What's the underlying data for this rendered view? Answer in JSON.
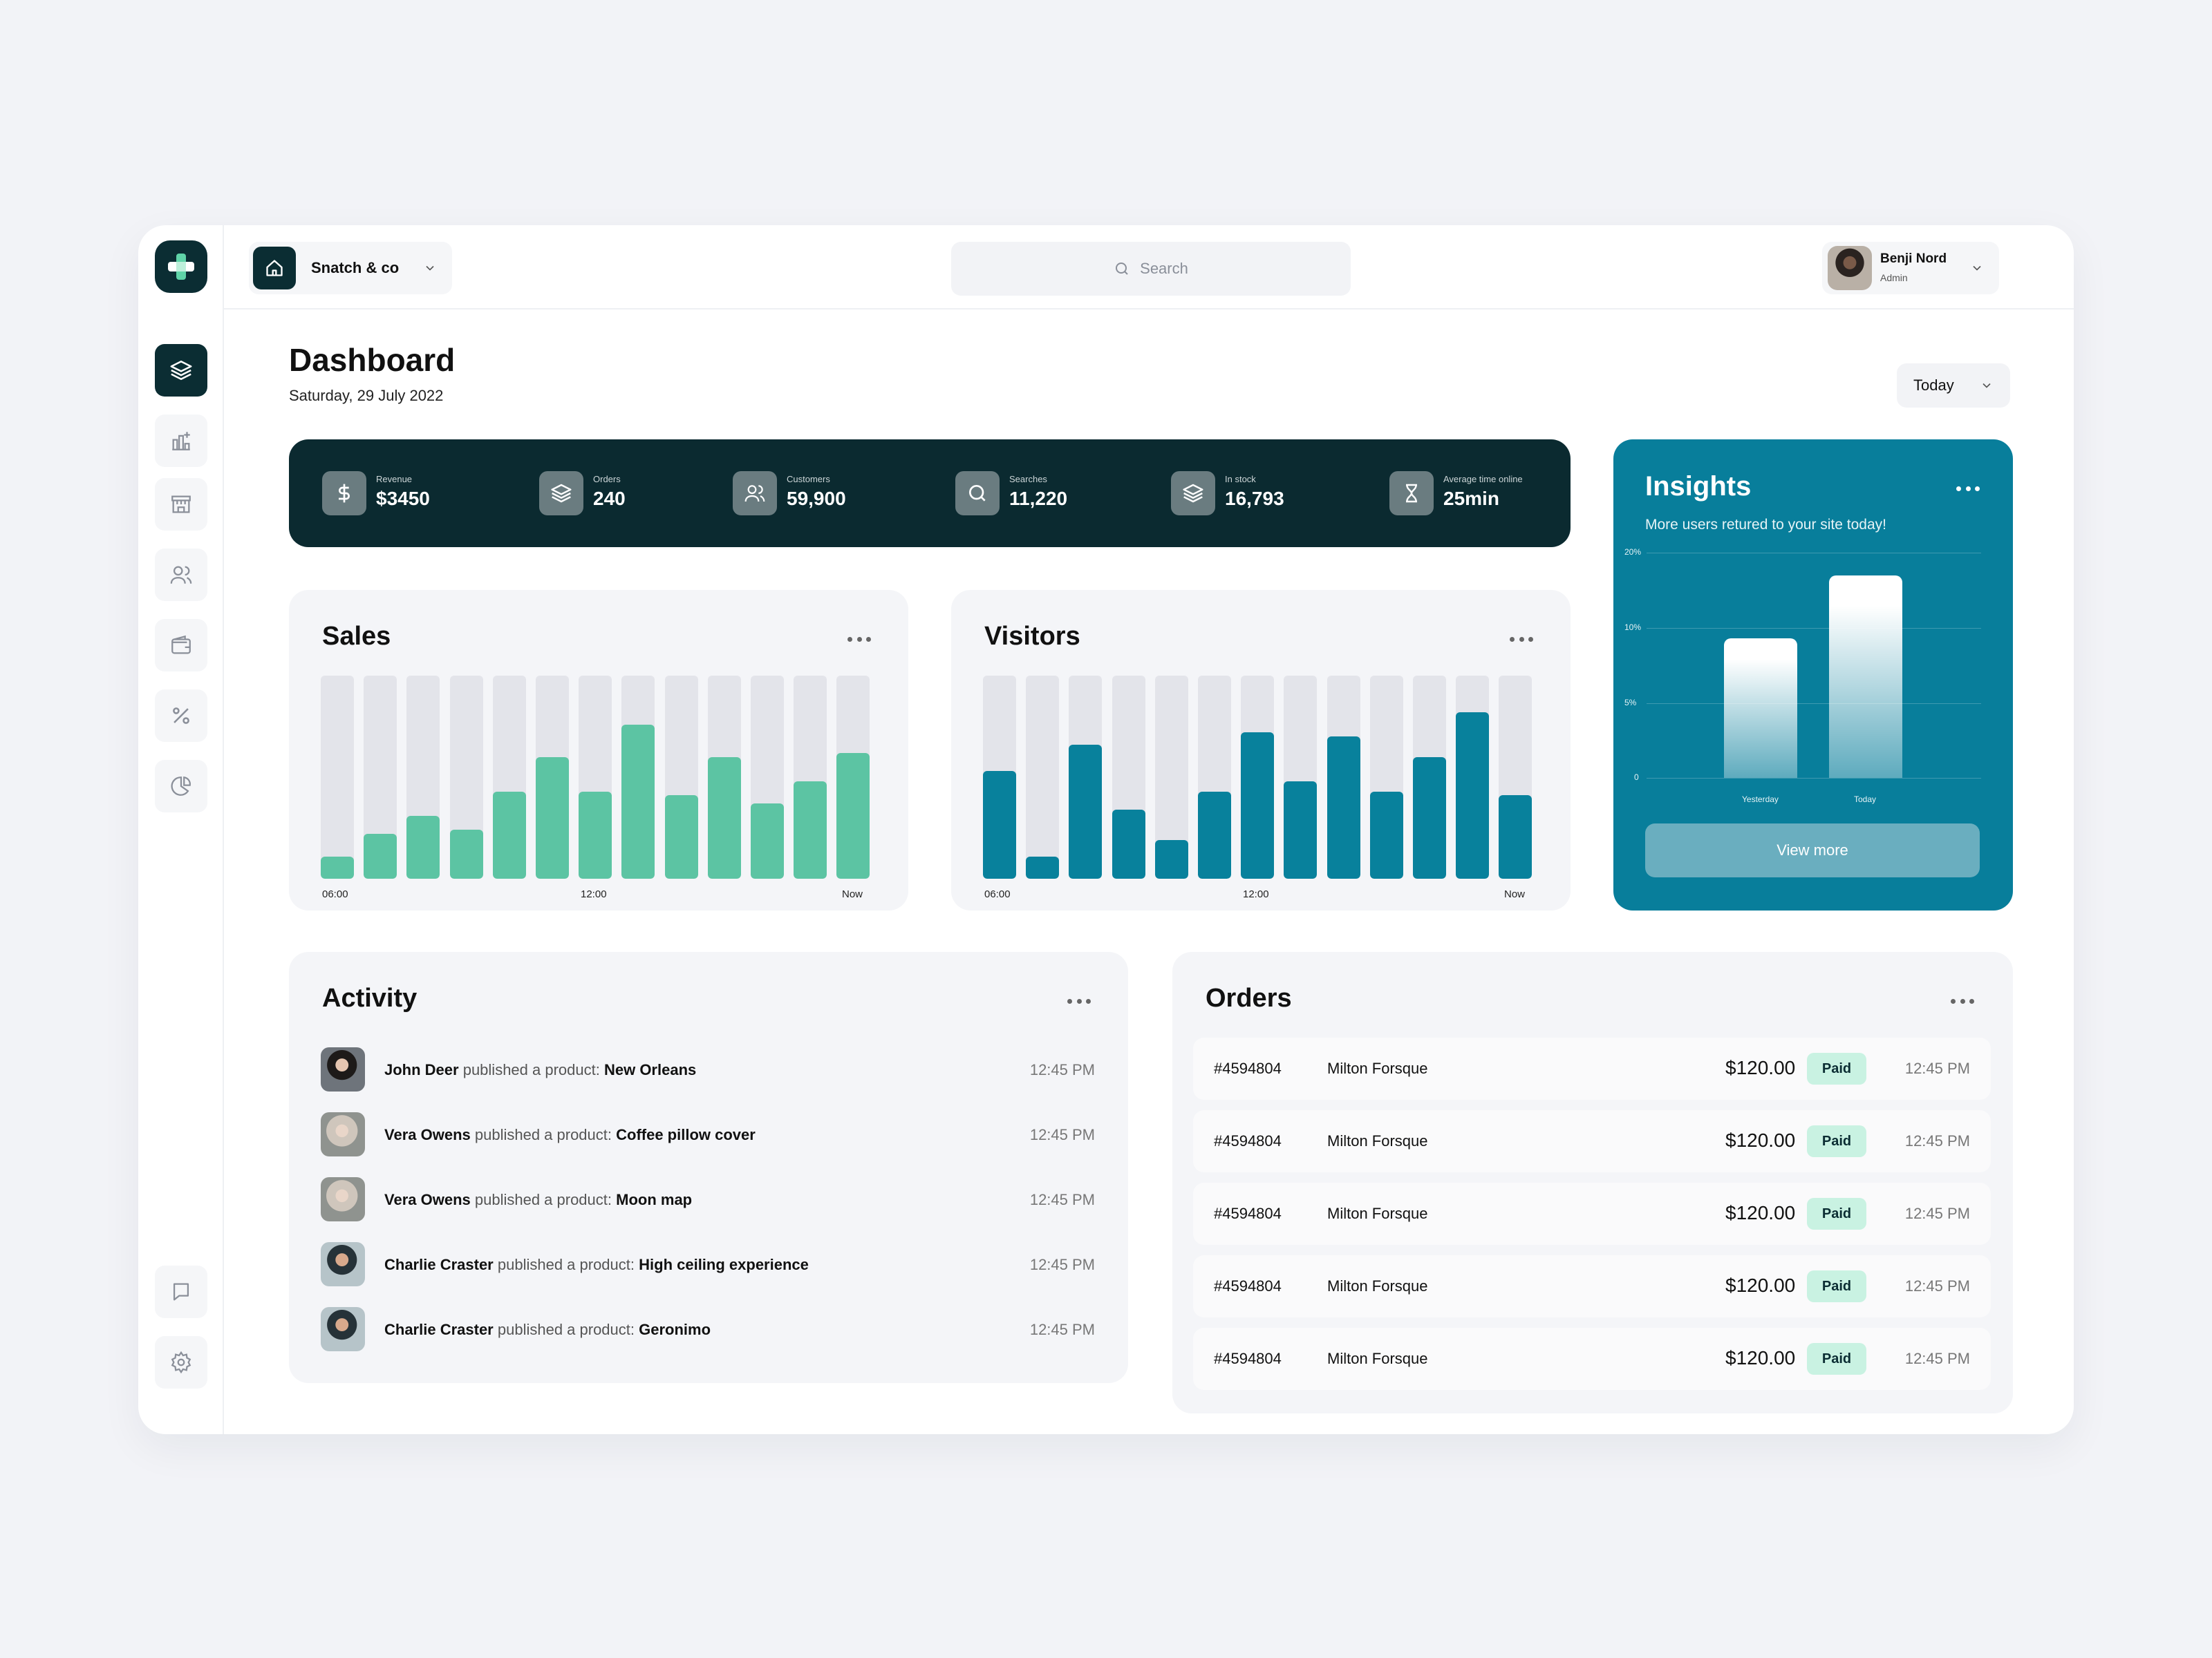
{
  "header": {
    "workspace_name": "Snatch & co",
    "search_placeholder": "Search",
    "user_name": "Benji Nord",
    "user_role": "Admin"
  },
  "page": {
    "title": "Dashboard",
    "date": "Saturday, 29 July 2022",
    "period_select": "Today"
  },
  "stats": [
    {
      "label": "Revenue",
      "value": "$3450",
      "icon": "dollar-icon"
    },
    {
      "label": "Orders",
      "value": "240",
      "icon": "layers-icon"
    },
    {
      "label": "Customers",
      "value": "59,900",
      "icon": "users-icon"
    },
    {
      "label": "Searches",
      "value": "11,220",
      "icon": "search-icon"
    },
    {
      "label": "In stock",
      "value": "16,793",
      "icon": "layers-icon"
    },
    {
      "label": "Average time online",
      "value": "25min",
      "icon": "hourglass-icon"
    }
  ],
  "sales": {
    "title": "Sales",
    "x_ticks": [
      "06:00",
      "12:00",
      "Now"
    ],
    "color": "#5cc4a3",
    "chart_data": {
      "type": "bar",
      "values": [
        0.11,
        0.22,
        0.31,
        0.24,
        0.43,
        0.6,
        0.43,
        0.76,
        0.41,
        0.6,
        0.37,
        0.48,
        0.62
      ],
      "ylim": [
        0,
        1
      ]
    }
  },
  "visitors": {
    "title": "Visitors",
    "x_ticks": [
      "06:00",
      "12:00",
      "Now"
    ],
    "color": "#08819c",
    "chart_data": {
      "type": "bar",
      "values": [
        0.53,
        0.11,
        0.66,
        0.34,
        0.19,
        0.43,
        0.72,
        0.48,
        0.7,
        0.43,
        0.6,
        0.82,
        0.41
      ],
      "ylim": [
        0,
        1
      ]
    }
  },
  "insights": {
    "title": "Insights",
    "subtitle": "More users retured to your site today!",
    "y_ticks": [
      "20%",
      "10%",
      "5%",
      "0"
    ],
    "x_labels": [
      "Yesterday",
      "Today"
    ],
    "button": "View more",
    "chart_data": {
      "type": "bar",
      "categories": [
        "Yesterday",
        "Today"
      ],
      "values": [
        0.62,
        0.9
      ],
      "ylim": [
        0,
        1
      ]
    }
  },
  "activity": {
    "title": "Activity",
    "items": [
      {
        "user": "John Deer",
        "action": " published a product: ",
        "product": "New Orleans",
        "time": "12:45 PM"
      },
      {
        "user": "Vera Owens",
        "action": " published a product: ",
        "product": "Coffee pillow cover",
        "time": "12:45 PM"
      },
      {
        "user": "Vera Owens",
        "action": " published a product: ",
        "product": "Moon map",
        "time": "12:45 PM"
      },
      {
        "user": "Charlie Craster",
        "action": " published a product: ",
        "product": "High ceiling experience",
        "time": "12:45 PM"
      },
      {
        "user": "Charlie Craster",
        "action": " published a product:  ",
        "product": "Geronimo",
        "time": "12:45 PM"
      }
    ]
  },
  "orders": {
    "title": "Orders",
    "rows": [
      {
        "id": "#4594804",
        "name": "Milton Forsque",
        "amount": "$120.00",
        "status": "Paid",
        "time": "12:45 PM"
      },
      {
        "id": "#4594804",
        "name": "Milton Forsque",
        "amount": "$120.00",
        "status": "Paid",
        "time": "12:45 PM"
      },
      {
        "id": "#4594804",
        "name": "Milton Forsque",
        "amount": "$120.00",
        "status": "Paid",
        "time": "12:45 PM"
      },
      {
        "id": "#4594804",
        "name": "Milton Forsque",
        "amount": "$120.00",
        "status": "Paid",
        "time": "12:45 PM"
      },
      {
        "id": "#4594804",
        "name": "Milton Forsque",
        "amount": "$120.00",
        "status": "Paid",
        "time": "12:45 PM"
      }
    ]
  },
  "sidebar": {
    "items": [
      "layers-icon",
      "chart-icon",
      "store-icon",
      "users-icon",
      "wallet-icon",
      "percent-icon",
      "pie-chart-icon"
    ],
    "bottom_items": [
      "message-icon",
      "settings-icon"
    ]
  }
}
